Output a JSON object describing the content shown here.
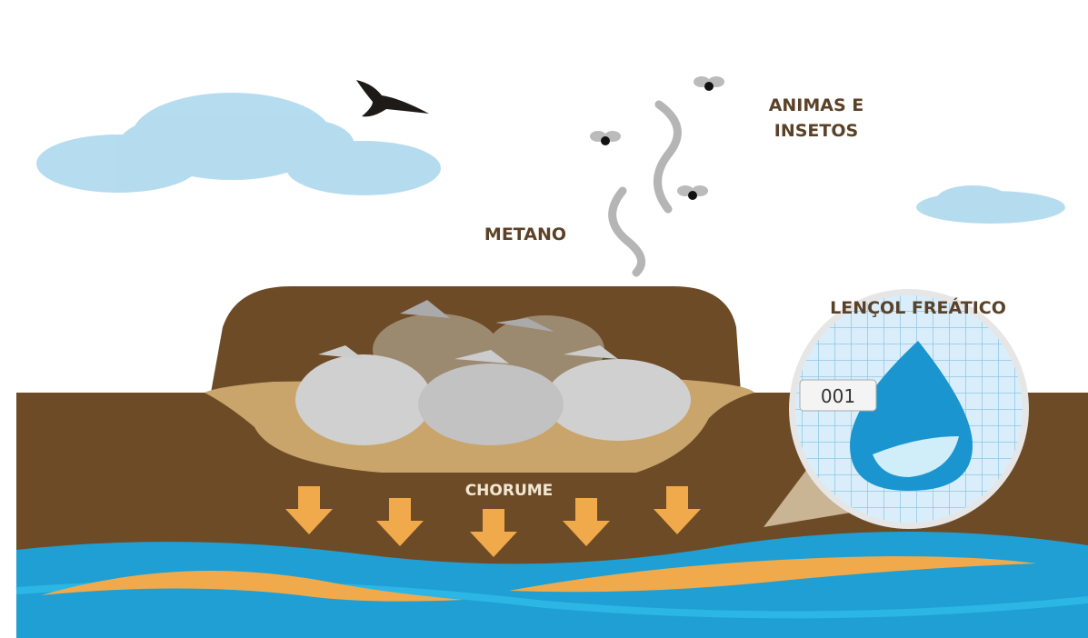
{
  "labels": {
    "animals": [
      "ANIMAS E",
      "INSETOS"
    ],
    "methane": "METANO",
    "groundwater": "LENÇOL FREÁTICO",
    "leachate": "CHORUME"
  },
  "tag": "001"
}
